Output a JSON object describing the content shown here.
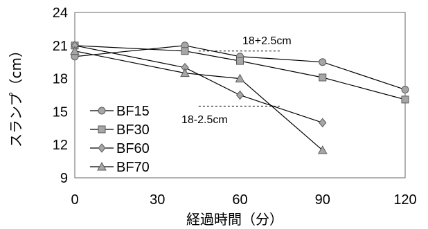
{
  "chart_data": {
    "type": "line",
    "title": "",
    "xlabel": "経過時間（分）",
    "ylabel": "スランプ（cm）",
    "xlim": [
      0,
      120
    ],
    "ylim": [
      9,
      24
    ],
    "xticks": [
      0,
      30,
      60,
      90,
      120
    ],
    "yticks": [
      9,
      12,
      15,
      18,
      21,
      24
    ],
    "grid": false,
    "legend_position": "bottom-left",
    "series": [
      {
        "name": "BF15",
        "marker": "circle",
        "x": [
          0,
          40,
          60,
          90,
          120
        ],
        "y": [
          20.0,
          21.0,
          20.0,
          19.5,
          17.0
        ]
      },
      {
        "name": "BF30",
        "marker": "square",
        "x": [
          0,
          40,
          60,
          90,
          120
        ],
        "y": [
          21.0,
          20.5,
          19.6,
          18.1,
          16.1
        ]
      },
      {
        "name": "BF60",
        "marker": "diamond",
        "x": [
          0,
          40,
          60,
          90
        ],
        "y": [
          21.0,
          19.0,
          16.5,
          14.0
        ]
      },
      {
        "name": "BF70",
        "marker": "triangle",
        "x": [
          0,
          40,
          60,
          90
        ],
        "y": [
          20.5,
          18.5,
          18.0,
          11.5
        ]
      }
    ],
    "annotations": [
      {
        "text": "18+2.5cm",
        "y": 20.5,
        "x_start": 45,
        "x_end": 75
      },
      {
        "text": "18-2.5cm",
        "y": 15.5,
        "x_start": 45,
        "x_end": 75
      }
    ],
    "colors": {
      "line": "#000000",
      "marker_fill": "#a6a6a6",
      "marker_stroke": "#595959",
      "axis": "#7f7f7f"
    }
  }
}
